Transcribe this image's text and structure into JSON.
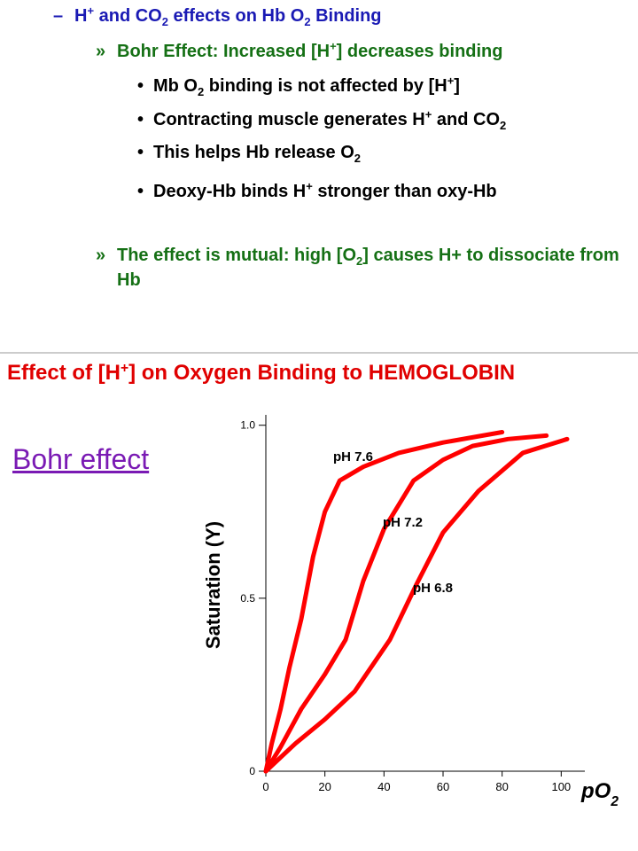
{
  "slide": {
    "lines": [
      {
        "level": 1,
        "marker": "–",
        "runs": [
          {
            "t": "H"
          },
          {
            "t": "+",
            "pos": "sup"
          },
          {
            "t": " and CO"
          },
          {
            "t": "2",
            "pos": "sub"
          },
          {
            "t": " effects on Hb O"
          },
          {
            "t": "2",
            "pos": "sub"
          },
          {
            "t": " Binding"
          }
        ]
      },
      {
        "level": 2,
        "marker": "»",
        "runs": [
          {
            "t": "Bohr Effect: Increased [H"
          },
          {
            "t": "+",
            "pos": "sup"
          },
          {
            "t": "] decreases binding"
          }
        ]
      },
      {
        "level": 3,
        "marker": "•",
        "runs": [
          {
            "t": "Mb O"
          },
          {
            "t": "2",
            "pos": "sub"
          },
          {
            "t": " binding is not affected by [H"
          },
          {
            "t": "+",
            "pos": "sup"
          },
          {
            "t": "]"
          }
        ]
      },
      {
        "level": 3,
        "marker": "•",
        "runs": [
          {
            "t": "Contracting muscle generates H"
          },
          {
            "t": "+",
            "pos": "sup"
          },
          {
            "t": " and CO"
          },
          {
            "t": "2",
            "pos": "sub"
          }
        ]
      },
      {
        "level": 3,
        "marker": "•",
        "runs": [
          {
            "t": "This helps Hb release O"
          },
          {
            "t": "2",
            "pos": "sub"
          }
        ]
      },
      {
        "level": 3,
        "marker": "•",
        "runs": [
          {
            "t": "Deoxy-Hb binds H"
          },
          {
            "t": "+",
            "pos": "sup"
          },
          {
            "t": " stronger than oxy-Hb"
          }
        ]
      },
      {
        "level": 2,
        "marker": "»",
        "runs": [
          {
            "t": "The effect is mutual: high [O"
          },
          {
            "t": "2",
            "pos": "sub"
          },
          {
            "t": "] causes H+ to dissociate from Hb"
          }
        ]
      }
    ],
    "side_label": "Bohr effect"
  },
  "chart_data": {
    "type": "line",
    "title": [
      {
        "t": "Effect of [H"
      },
      {
        "t": "+",
        "pos": "sup"
      },
      {
        "t": "] on Oxygen Binding to HEMOGLOBIN"
      }
    ],
    "y_label": "Saturation (Y)",
    "x_label": [
      {
        "t": "pO"
      },
      {
        "t": "2",
        "pos": "sub"
      }
    ],
    "xlim": [
      0,
      108
    ],
    "ylim": [
      0,
      1.03
    ],
    "xticks": [
      0,
      20,
      40,
      60,
      80,
      100
    ],
    "yticks": [
      0,
      0.5,
      {
        "value": 1,
        "label": "1.0"
      }
    ],
    "series": [
      {
        "name": "pH 7.6",
        "color": "#ff0000",
        "x": [
          0,
          2,
          5,
          8,
          12,
          16,
          20,
          25,
          33,
          45,
          60,
          80
        ],
        "values": [
          0,
          0.08,
          0.18,
          0.3,
          0.44,
          0.62,
          0.75,
          0.84,
          0.88,
          0.92,
          0.95,
          0.98
        ]
      },
      {
        "name": "pH 7.2",
        "color": "#ff0000",
        "x": [
          0,
          5,
          12,
          20,
          27,
          33,
          40,
          50,
          60,
          70,
          82,
          95
        ],
        "values": [
          0,
          0.07,
          0.18,
          0.28,
          0.38,
          0.55,
          0.7,
          0.84,
          0.9,
          0.94,
          0.96,
          0.97
        ]
      },
      {
        "name": "pH 6.8",
        "color": "#ff0000",
        "x": [
          0,
          10,
          20,
          30,
          42,
          51,
          60,
          72,
          87,
          102
        ],
        "values": [
          0,
          0.08,
          0.15,
          0.23,
          0.38,
          0.54,
          0.69,
          0.81,
          0.92,
          0.96
        ]
      }
    ]
  }
}
